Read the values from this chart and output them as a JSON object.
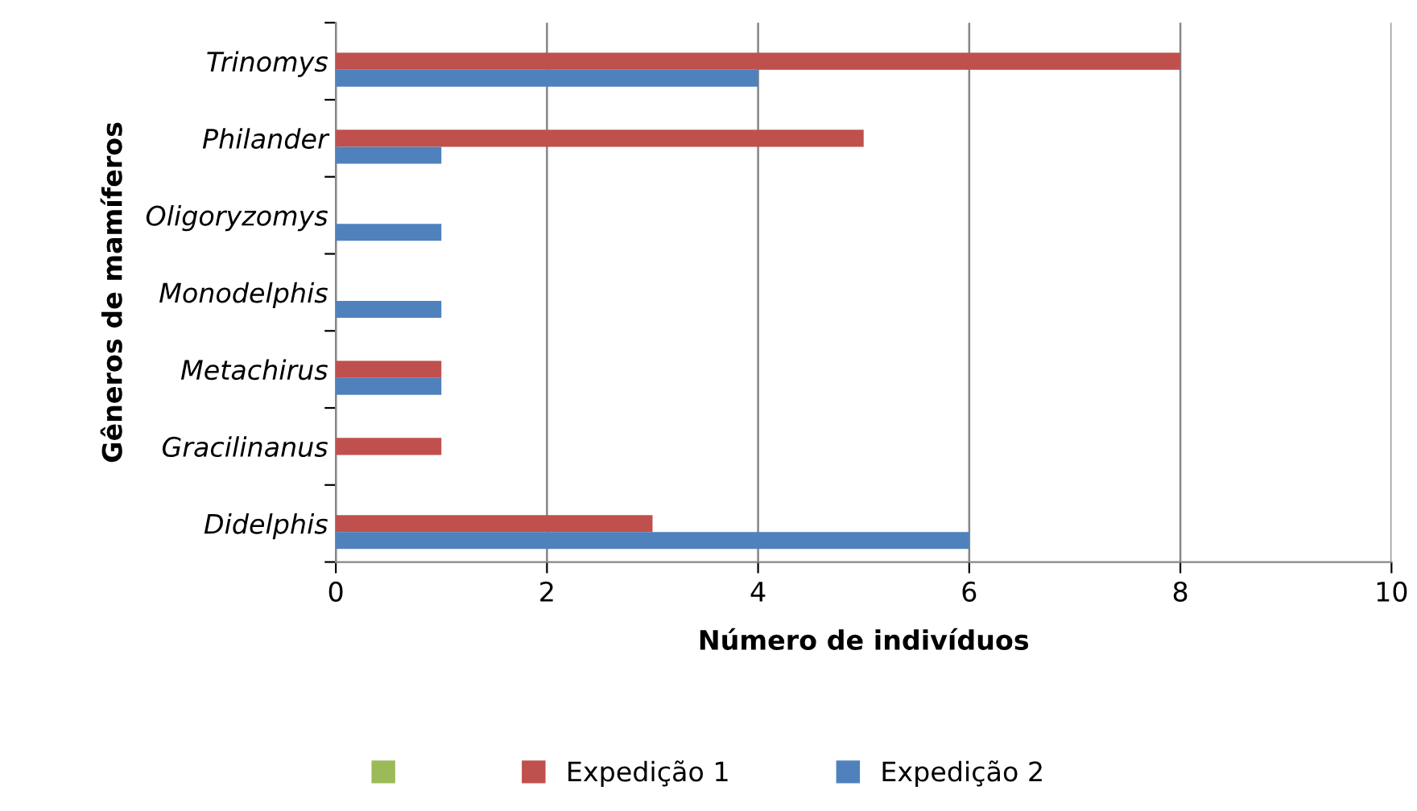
{
  "chart_data": {
    "type": "bar",
    "orientation": "horizontal",
    "xlabel": "Número de indivíduos",
    "ylabel": "Gêneros de mamíferos",
    "categories": [
      "Trinomys",
      "Philander",
      "Oligoryzomys",
      "Monodelphis",
      "Metachirus",
      "Gracilinanus",
      "Didelphis"
    ],
    "series": [
      {
        "color": "#9bbb59",
        "values": [
          null,
          null,
          null,
          null,
          null,
          null,
          null
        ]
      },
      {
        "name": "Expedição 1",
        "color": "#c0504d",
        "values": [
          8,
          5,
          null,
          null,
          1,
          1,
          3
        ]
      },
      {
        "name": "Expedição 2",
        "color": "#4f81bd",
        "values": [
          4,
          1,
          1,
          1,
          1,
          null,
          6
        ]
      }
    ],
    "xlim": [
      0,
      10
    ],
    "xticks": [
      0,
      2,
      4,
      6,
      8,
      10
    ],
    "grid": "x",
    "legend": "bottom"
  }
}
